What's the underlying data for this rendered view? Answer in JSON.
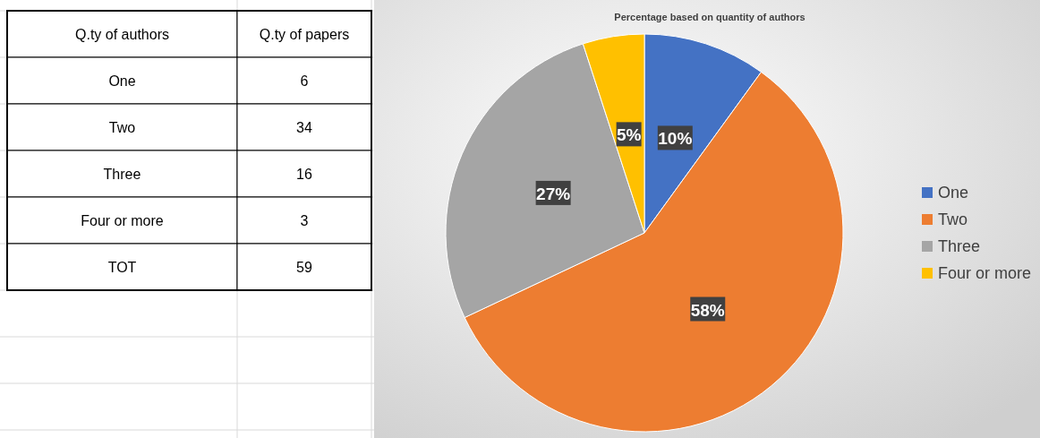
{
  "chart_data": {
    "type": "pie",
    "title": "Percentage based on quantity of authors",
    "categories": [
      "One",
      "Two",
      "Three",
      "Four or more"
    ],
    "values": [
      10,
      58,
      27,
      5
    ],
    "value_labels": [
      "10%",
      "58%",
      "27%",
      "5%"
    ],
    "colors": [
      "#4472c4",
      "#ed7d31",
      "#a5a5a5",
      "#ffc000"
    ],
    "legend": "right",
    "annotations": [
      "Q.ty of authors",
      "Q.ty of papers",
      "6",
      "34",
      "16",
      "3",
      "TOT",
      "59"
    ]
  }
}
